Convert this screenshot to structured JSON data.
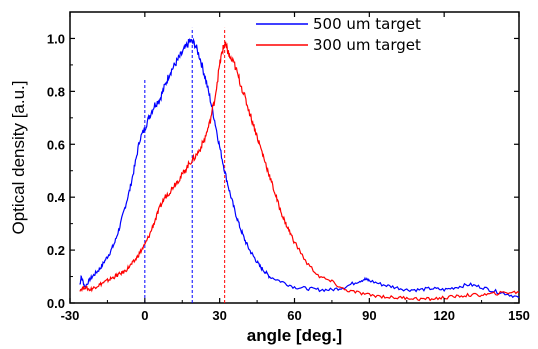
{
  "chart_data": {
    "type": "line",
    "title": "",
    "xlabel": "angle [deg.]",
    "ylabel": "Optical density [a.u.]",
    "xlim": [
      -30,
      150
    ],
    "ylim": [
      0.0,
      1.1
    ],
    "x_ticks": [
      -30,
      0,
      30,
      60,
      90,
      120,
      150
    ],
    "y_ticks": [
      0.0,
      0.2,
      0.4,
      0.6,
      0.8,
      1.0
    ],
    "x_tick_labels": [
      "-30",
      "0",
      "30",
      "60",
      "90",
      "120",
      "150"
    ],
    "y_tick_labels": [
      "0.0",
      "0.2",
      "0.4",
      "0.6",
      "0.8",
      "1.0"
    ],
    "grid": false,
    "legend_position": "top-right",
    "series": [
      {
        "name": "500 um target",
        "color": "#0000ff",
        "x": [
          -26,
          -25.5,
          -24,
          -22,
          -20,
          -18,
          -16,
          -14,
          -12,
          -10,
          -8,
          -6,
          -4,
          -2,
          0,
          2,
          4,
          6,
          8,
          10,
          12,
          14,
          16,
          18,
          20,
          22,
          24,
          26,
          28,
          30,
          32,
          34,
          36,
          38,
          40,
          42,
          44,
          46,
          48,
          50,
          55,
          60,
          65,
          70,
          75,
          80,
          85,
          88,
          90,
          95,
          100,
          105,
          110,
          115,
          120,
          125,
          130,
          135,
          140,
          145,
          150
        ],
        "y": [
          0.07,
          0.1,
          0.06,
          0.09,
          0.11,
          0.13,
          0.16,
          0.19,
          0.23,
          0.29,
          0.36,
          0.43,
          0.52,
          0.62,
          0.66,
          0.71,
          0.75,
          0.77,
          0.82,
          0.87,
          0.9,
          0.93,
          0.96,
          0.99,
          0.98,
          0.93,
          0.86,
          0.78,
          0.69,
          0.59,
          0.5,
          0.42,
          0.35,
          0.29,
          0.24,
          0.2,
          0.17,
          0.14,
          0.12,
          0.1,
          0.08,
          0.06,
          0.055,
          0.05,
          0.05,
          0.06,
          0.08,
          0.09,
          0.085,
          0.07,
          0.06,
          0.05,
          0.05,
          0.055,
          0.05,
          0.06,
          0.07,
          0.06,
          0.045,
          0.035,
          0.02
        ]
      },
      {
        "name": "300 um target",
        "color": "#ff0000",
        "x": [
          -26,
          -24,
          -22,
          -20,
          -18,
          -16,
          -14,
          -12,
          -10,
          -8,
          -6,
          -4,
          -2,
          0,
          2,
          4,
          6,
          8,
          10,
          12,
          14,
          16,
          18,
          20,
          22,
          24,
          26,
          28,
          30,
          31,
          32,
          33,
          34,
          36,
          38,
          40,
          42,
          44,
          46,
          48,
          50,
          52,
          54,
          56,
          58,
          60,
          65,
          70,
          75,
          80,
          85,
          90,
          95,
          100,
          105,
          110,
          115,
          120,
          125,
          130,
          135,
          140,
          145,
          150
        ],
        "y": [
          0.05,
          0.06,
          0.05,
          0.06,
          0.07,
          0.08,
          0.09,
          0.1,
          0.11,
          0.12,
          0.14,
          0.16,
          0.19,
          0.22,
          0.26,
          0.31,
          0.36,
          0.4,
          0.42,
          0.45,
          0.47,
          0.5,
          0.53,
          0.55,
          0.58,
          0.62,
          0.68,
          0.77,
          0.9,
          0.95,
          0.98,
          0.96,
          0.93,
          0.9,
          0.84,
          0.78,
          0.72,
          0.66,
          0.6,
          0.54,
          0.48,
          0.42,
          0.36,
          0.31,
          0.27,
          0.23,
          0.15,
          0.1,
          0.08,
          0.05,
          0.04,
          0.03,
          0.025,
          0.02,
          0.02,
          0.015,
          0.015,
          0.02,
          0.025,
          0.03,
          0.03,
          0.035,
          0.04,
          0.04
        ]
      }
    ],
    "reference_lines": [
      {
        "x": 0,
        "color": "#0000ff",
        "y_top": 0.85
      },
      {
        "x": 19,
        "color": "#0000ff",
        "y_top": 1.04
      },
      {
        "x": 32,
        "color": "#ff0000",
        "y_top": 1.04
      }
    ]
  }
}
